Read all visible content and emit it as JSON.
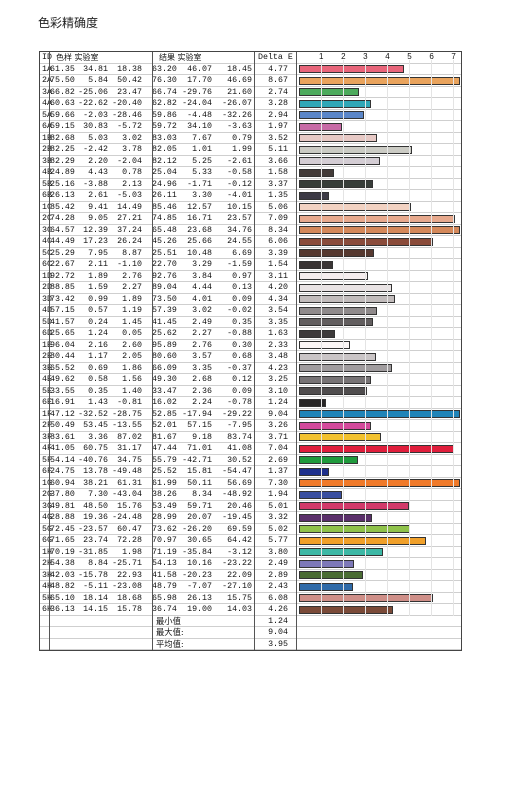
{
  "title": "色彩精确度",
  "headers": {
    "id": "ID",
    "sample": "色样 实验室",
    "result": "结果 实验室",
    "delta": "Delta E"
  },
  "chart_data": {
    "type": "bar",
    "orientation": "horizontal",
    "x_ticks": [
      1,
      2,
      3,
      4,
      5,
      6,
      7
    ],
    "xlim": [
      0,
      7.3
    ],
    "rows": [
      {
        "id": "1A",
        "s": [
          "61.35",
          "34.81",
          "18.38"
        ],
        "r": [
          "63.20",
          "46.07",
          "18.45"
        ],
        "de": 4.77,
        "color": "#e8657a"
      },
      {
        "id": "2A",
        "s": [
          "75.50",
          "5.84",
          "50.42"
        ],
        "r": [
          "76.30",
          "17.70",
          "46.69"
        ],
        "de": 8.67,
        "color": "#e9a35c"
      },
      {
        "id": "3A",
        "s": [
          "66.82",
          "-25.06",
          "23.47"
        ],
        "r": [
          "66.74",
          "-29.76",
          "21.60"
        ],
        "de": 2.74,
        "color": "#4caa5c"
      },
      {
        "id": "4A",
        "s": [
          "60.63",
          "-22.62",
          "-20.40"
        ],
        "r": [
          "62.82",
          "-24.04",
          "-26.07"
        ],
        "de": 3.28,
        "color": "#2fa7b7"
      },
      {
        "id": "5A",
        "s": [
          "59.66",
          "-2.03",
          "-28.46"
        ],
        "r": [
          "59.86",
          "-4.48",
          "-32.26"
        ],
        "de": 2.94,
        "color": "#5b86c8"
      },
      {
        "id": "6A",
        "s": [
          "59.15",
          "30.83",
          "-5.72"
        ],
        "r": [
          "59.72",
          "34.10",
          "-3.63"
        ],
        "de": 1.97,
        "color": "#c76aa6"
      },
      {
        "id": "1B",
        "s": [
          "82.68",
          "5.03",
          "3.02"
        ],
        "r": [
          "83.03",
          "7.67",
          "0.79"
        ],
        "de": 3.52,
        "color": "#e7c9c5"
      },
      {
        "id": "2B",
        "s": [
          "82.25",
          "-2.42",
          "3.78"
        ],
        "r": [
          "82.05",
          "1.01",
          "1.99"
        ],
        "de": 5.11,
        "color": "#cbcbc4"
      },
      {
        "id": "3B",
        "s": [
          "82.29",
          "2.20",
          "-2.04"
        ],
        "r": [
          "82.12",
          "5.25",
          "-2.61"
        ],
        "de": 3.66,
        "color": "#d4cdd4"
      },
      {
        "id": "4B",
        "s": [
          "24.89",
          "4.43",
          "0.78"
        ],
        "r": [
          "25.04",
          "5.33",
          "-0.58"
        ],
        "de": 1.58,
        "color": "#433b39"
      },
      {
        "id": "5B",
        "s": [
          "25.16",
          "-3.88",
          "2.13"
        ],
        "r": [
          "24.96",
          "-1.71",
          "-0.12"
        ],
        "de": 3.37,
        "color": "#373d39"
      },
      {
        "id": "6B",
        "s": [
          "26.13",
          "2.61",
          "-5.03"
        ],
        "r": [
          "26.11",
          "3.30",
          "-4.01"
        ],
        "de": 1.35,
        "color": "#3c3a45"
      },
      {
        "id": "1C",
        "s": [
          "85.42",
          "9.41",
          "14.49"
        ],
        "r": [
          "85.46",
          "12.57",
          "10.15"
        ],
        "de": 5.06,
        "color": "#f2d2c2"
      },
      {
        "id": "2C",
        "s": [
          "74.28",
          "9.05",
          "27.21"
        ],
        "r": [
          "74.85",
          "16.71",
          "23.57"
        ],
        "de": 7.09,
        "color": "#e7a98d"
      },
      {
        "id": "3C",
        "s": [
          "64.57",
          "12.39",
          "37.24"
        ],
        "r": [
          "65.48",
          "23.68",
          "34.76"
        ],
        "de": 8.34,
        "color": "#d4885a"
      },
      {
        "id": "4C",
        "s": [
          "44.49",
          "17.23",
          "26.24"
        ],
        "r": [
          "45.26",
          "25.66",
          "24.55"
        ],
        "de": 6.06,
        "color": "#8a4b3a"
      },
      {
        "id": "5C",
        "s": [
          "25.29",
          "7.95",
          "8.87"
        ],
        "r": [
          "25.51",
          "10.48",
          "6.69"
        ],
        "de": 3.39,
        "color": "#563930"
      },
      {
        "id": "6C",
        "s": [
          "22.67",
          "2.11",
          "-1.10"
        ],
        "r": [
          "22.70",
          "3.29",
          "-1.59"
        ],
        "de": 1.54,
        "color": "#3a3535"
      },
      {
        "id": "1D",
        "s": [
          "92.72",
          "1.89",
          "2.76"
        ],
        "r": [
          "92.76",
          "3.84",
          "0.97"
        ],
        "de": 3.11,
        "color": "#f5edee"
      },
      {
        "id": "2D",
        "s": [
          "88.85",
          "1.59",
          "2.27"
        ],
        "r": [
          "89.04",
          "4.44",
          "0.13"
        ],
        "de": 4.2,
        "color": "#e9e3e4"
      },
      {
        "id": "3D",
        "s": [
          "73.42",
          "0.99",
          "1.89"
        ],
        "r": [
          "73.50",
          "4.01",
          "0.09"
        ],
        "de": 4.34,
        "color": "#c2bcbc"
      },
      {
        "id": "4D",
        "s": [
          "57.15",
          "0.57",
          "1.19"
        ],
        "r": [
          "57.39",
          "3.02",
          "-0.02"
        ],
        "de": 3.54,
        "color": "#8f8a8b"
      },
      {
        "id": "5D",
        "s": [
          "41.57",
          "0.24",
          "1.45"
        ],
        "r": [
          "41.45",
          "2.49",
          "0.35"
        ],
        "de": 3.35,
        "color": "#625e5f"
      },
      {
        "id": "6D",
        "s": [
          "25.65",
          "1.24",
          "0.05"
        ],
        "r": [
          "25.62",
          "2.27",
          "-0.88"
        ],
        "de": 1.63,
        "color": "#3d3a3b"
      },
      {
        "id": "1E",
        "s": [
          "96.04",
          "2.16",
          "2.60"
        ],
        "r": [
          "95.89",
          "2.76",
          "0.30"
        ],
        "de": 2.33,
        "color": "#fbf6f6"
      },
      {
        "id": "2E",
        "s": [
          "80.44",
          "1.17",
          "2.05"
        ],
        "r": [
          "80.60",
          "3.57",
          "0.68"
        ],
        "de": 3.48,
        "color": "#cac5c6"
      },
      {
        "id": "3E",
        "s": [
          "65.52",
          "0.69",
          "1.86"
        ],
        "r": [
          "66.09",
          "3.35",
          "-0.37"
        ],
        "de": 4.23,
        "color": "#a09c9e"
      },
      {
        "id": "4E",
        "s": [
          "49.62",
          "0.58",
          "1.56"
        ],
        "r": [
          "49.30",
          "2.68",
          "0.12"
        ],
        "de": 3.25,
        "color": "#777375"
      },
      {
        "id": "5E",
        "s": [
          "33.55",
          "0.35",
          "1.40"
        ],
        "r": [
          "33.47",
          "2.36",
          "0.09"
        ],
        "de": 3.1,
        "color": "#504d4e"
      },
      {
        "id": "6E",
        "s": [
          "16.91",
          "1.43",
          "-0.81"
        ],
        "r": [
          "16.02",
          "2.24",
          "-0.78"
        ],
        "de": 1.24,
        "color": "#262425"
      },
      {
        "id": "1F",
        "s": [
          "47.12",
          "-32.52",
          "-28.75"
        ],
        "r": [
          "52.85",
          "-17.94",
          "-29.22"
        ],
        "de": 9.04,
        "color": "#1f84b8"
      },
      {
        "id": "2F",
        "s": [
          "50.49",
          "53.45",
          "-13.55"
        ],
        "r": [
          "52.01",
          "57.15",
          "-7.95"
        ],
        "de": 3.26,
        "color": "#d44a9c"
      },
      {
        "id": "3F",
        "s": [
          "83.61",
          "3.36",
          "87.02"
        ],
        "r": [
          "81.67",
          "9.18",
          "83.74"
        ],
        "de": 3.71,
        "color": "#f2c12e"
      },
      {
        "id": "4F",
        "s": [
          "41.05",
          "60.75",
          "31.17"
        ],
        "r": [
          "47.44",
          "71.01",
          "41.08"
        ],
        "de": 7.04,
        "color": "#e01e3c"
      },
      {
        "id": "5F",
        "s": [
          "54.14",
          "-40.76",
          "34.75"
        ],
        "r": [
          "55.79",
          "-42.71",
          "30.52"
        ],
        "de": 2.69,
        "color": "#1f9a3c"
      },
      {
        "id": "6F",
        "s": [
          "24.75",
          "13.78",
          "-49.48"
        ],
        "r": [
          "25.52",
          "15.81",
          "-54.47"
        ],
        "de": 1.37,
        "color": "#1d2f8c"
      },
      {
        "id": "1G",
        "s": [
          "60.94",
          "38.21",
          "61.31"
        ],
        "r": [
          "61.99",
          "50.11",
          "56.69"
        ],
        "de": 7.3,
        "color": "#f07a2a"
      },
      {
        "id": "2G",
        "s": [
          "37.80",
          "7.30",
          "-43.04"
        ],
        "r": [
          "38.26",
          "8.34",
          "-48.92"
        ],
        "de": 1.94,
        "color": "#3a4fa0"
      },
      {
        "id": "3G",
        "s": [
          "49.81",
          "48.50",
          "15.76"
        ],
        "r": [
          "53.49",
          "59.71",
          "20.46"
        ],
        "de": 5.01,
        "color": "#d33a6a"
      },
      {
        "id": "4G",
        "s": [
          "28.88",
          "19.36",
          "-24.48"
        ],
        "r": [
          "28.99",
          "20.07",
          "-19.45"
        ],
        "de": 3.32,
        "color": "#5a2f6a"
      },
      {
        "id": "5G",
        "s": [
          "72.45",
          "-23.57",
          "60.47"
        ],
        "r": [
          "73.62",
          "-26.20",
          "69.59"
        ],
        "de": 5.02,
        "color": "#8fc24a"
      },
      {
        "id": "6G",
        "s": [
          "71.65",
          "23.74",
          "72.28"
        ],
        "r": [
          "70.97",
          "30.65",
          "64.42"
        ],
        "de": 5.77,
        "color": "#f0a02a"
      },
      {
        "id": "1H",
        "s": [
          "70.19",
          "-31.85",
          "1.98"
        ],
        "r": [
          "71.19",
          "-35.84",
          "-3.12"
        ],
        "de": 3.8,
        "color": "#3cb8a5"
      },
      {
        "id": "2H",
        "s": [
          "54.38",
          "8.84",
          "-25.71"
        ],
        "r": [
          "54.13",
          "10.16",
          "-23.22"
        ],
        "de": 2.49,
        "color": "#7d78b8"
      },
      {
        "id": "3H",
        "s": [
          "42.03",
          "-15.78",
          "22.93"
        ],
        "r": [
          "41.58",
          "-20.23",
          "22.09"
        ],
        "de": 2.89,
        "color": "#4a6c33"
      },
      {
        "id": "4H",
        "s": [
          "48.82",
          "-5.11",
          "-23.08"
        ],
        "r": [
          "48.79",
          "-7.07",
          "-27.10"
        ],
        "de": 2.43,
        "color": "#2f6aa8"
      },
      {
        "id": "5H",
        "s": [
          "65.10",
          "18.14",
          "18.68"
        ],
        "r": [
          "65.98",
          "26.13",
          "15.75"
        ],
        "de": 6.08,
        "color": "#cf8f88"
      },
      {
        "id": "6H",
        "s": [
          "36.13",
          "14.15",
          "15.78"
        ],
        "r": [
          "36.74",
          "19.00",
          "14.03"
        ],
        "de": 4.26,
        "color": "#7a4a38"
      }
    ]
  },
  "summary": [
    {
      "label": "最小值",
      "value": "1.24"
    },
    {
      "label": "最大值:",
      "value": "9.04"
    },
    {
      "label": "平均值:",
      "value": "3.95"
    }
  ]
}
